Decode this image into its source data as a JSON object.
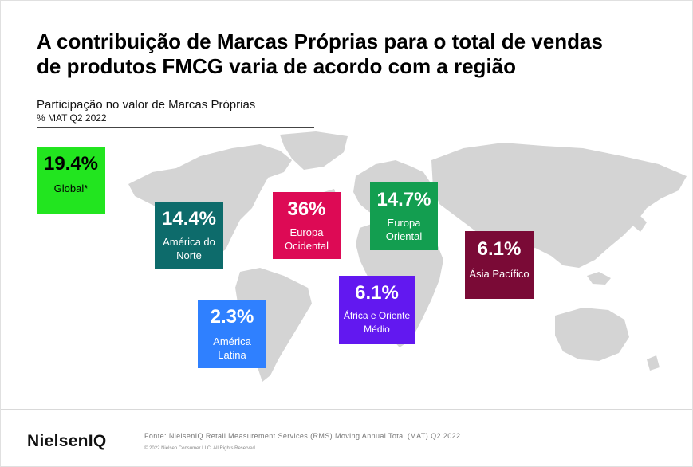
{
  "title_line1": "A contribuição de Marcas Próprias para o total de vendas",
  "title_line2": "de produtos FMCG varia de acordo com a região",
  "subtitle": "Participação  no valor de Marcas Próprias",
  "subtitle2": "% MAT Q2 2022",
  "regions": [
    {
      "value": "19.4%",
      "label_lines": [
        "Global*"
      ],
      "color": "#22e51f",
      "text_color": "#000000"
    },
    {
      "value": "14.4%",
      "label_lines": [
        "América do",
        "Norte"
      ],
      "color": "#0d6b6b",
      "text_color": "#ffffff"
    },
    {
      "value": "36%",
      "label_lines": [
        "Europa",
        "Ocidental"
      ],
      "color": "#dd0a55",
      "text_color": "#ffffff"
    },
    {
      "value": "14.7%",
      "label_lines": [
        "Europa",
        "Oriental"
      ],
      "color": "#139e50",
      "text_color": "#ffffff"
    },
    {
      "value": "6.1%",
      "label_lines": [
        "Ásia Pacífico"
      ],
      "color": "#7a0a36",
      "text_color": "#ffffff"
    },
    {
      "value": "6.1%",
      "label_lines": [
        "África e Oriente",
        "Médio"
      ],
      "color": "#6218f0",
      "text_color": "#ffffff"
    },
    {
      "value": "2.3%",
      "label_lines": [
        "América",
        "Latina"
      ],
      "color": "#2f80ff",
      "text_color": "#ffffff"
    }
  ],
  "logo": "NielsenIQ",
  "source": "Fonte: NielsenIQ Retail Measurement  Services (RMS) Moving Annual Total (MAT) Q2 2022",
  "copyright": "© 2022 Nielsen Consumer LLC. All Rights Reserved."
}
